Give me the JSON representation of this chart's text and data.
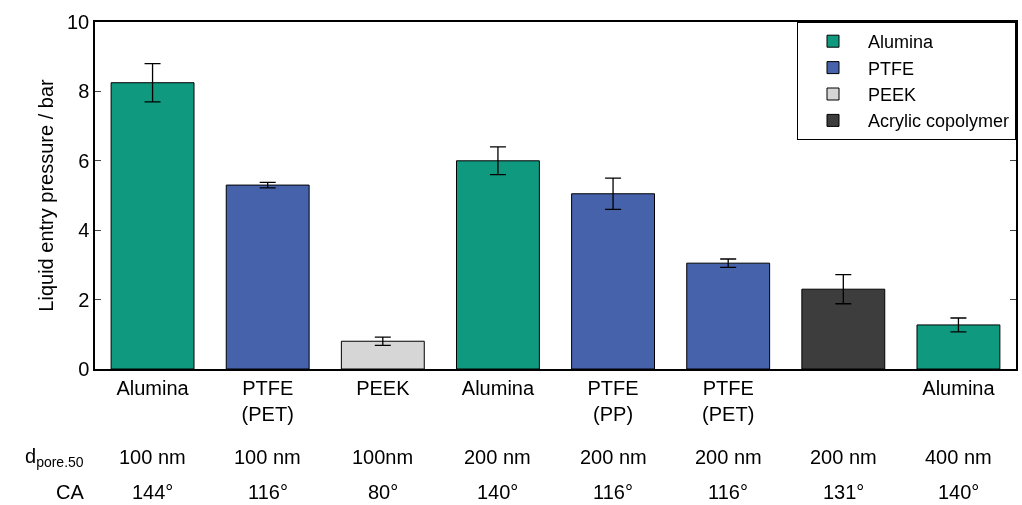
{
  "chart_data": {
    "type": "bar",
    "ylabel": "Liquid entry pressure / bar",
    "categories": [
      "Alumina",
      "PTFE\n(PET)",
      "PEEK",
      "Alumina",
      "PTFE\n(PP)",
      "PTFE\n(PET)",
      null,
      "Alumina"
    ],
    "series": [
      {
        "name": "Alumina",
        "color": "#0f9a80",
        "values": [
          8.25,
          null,
          null,
          6.0,
          null,
          null,
          null,
          1.27
        ],
        "errors": [
          0.55,
          null,
          null,
          0.4,
          null,
          null,
          null,
          0.2
        ]
      },
      {
        "name": "PTFE",
        "color": "#4562ab",
        "values": [
          null,
          5.3,
          null,
          null,
          5.05,
          3.05,
          null,
          null
        ],
        "errors": [
          null,
          0.08,
          null,
          null,
          0.45,
          0.12,
          null,
          null
        ]
      },
      {
        "name": "PEEK",
        "color": "#d6d6d6",
        "values": [
          null,
          null,
          0.8,
          null,
          null,
          null,
          null,
          null
        ],
        "errors": [
          null,
          null,
          0.12,
          null,
          null,
          null,
          null,
          null
        ]
      },
      {
        "name": "Acrylic copolymer",
        "color": "#3d3d3d",
        "values": [
          null,
          null,
          null,
          null,
          null,
          null,
          2.3,
          null
        ],
        "errors": [
          null,
          null,
          null,
          null,
          null,
          null,
          0.42,
          null
        ]
      }
    ],
    "annotations": [
      "d$_{pore.50}$",
      "CA",
      "100 nm",
      "100 nm",
      "100nm",
      "200 nm",
      "200 nm",
      "200 nm",
      "200 nm",
      "400 nm",
      "144°",
      "116°",
      "80°",
      "140°",
      "116°",
      "116°",
      "131°",
      "140°"
    ],
    "ylim": [
      0,
      10
    ],
    "yticks": [
      0,
      2,
      4,
      6,
      8,
      10
    ],
    "grid": false,
    "legend": "top right"
  }
}
